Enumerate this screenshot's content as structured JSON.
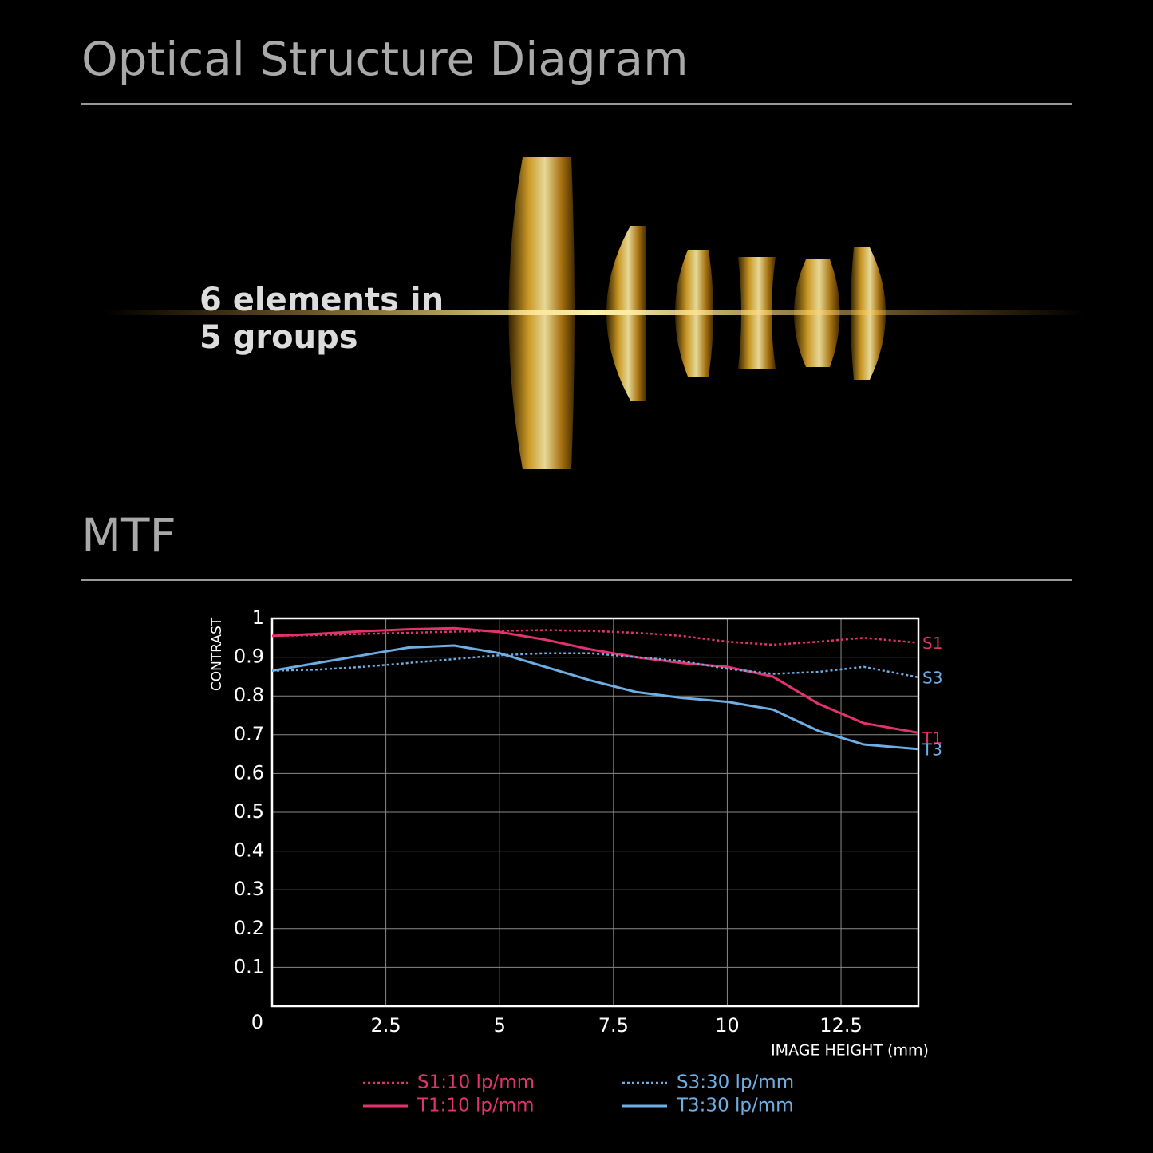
{
  "header": {
    "title": "Optical Structure Diagram"
  },
  "lens": {
    "caption": [
      "6 elements in",
      "5 groups"
    ]
  },
  "mtf": {
    "title": "MTF"
  },
  "chart_data": {
    "type": "line",
    "ylabel": "CONTRAST",
    "xlabel": "IMAGE HEIGHT  (mm)",
    "x": [
      0,
      1,
      2,
      3,
      4,
      5,
      6,
      7,
      8,
      9,
      10,
      11,
      12,
      13,
      14.2
    ],
    "xlim": [
      0,
      14.2
    ],
    "ylim": [
      0,
      1
    ],
    "xticks": [
      2.5,
      5,
      7.5,
      10,
      12.5
    ],
    "yticks": [
      0,
      0.1,
      0.2,
      0.3,
      0.4,
      0.5,
      0.6,
      0.7,
      0.8,
      0.9,
      1
    ],
    "grid": true,
    "series": [
      {
        "name": "S1:10 lp/mm",
        "end_label": "S1",
        "color": "#e3336f",
        "linestyle": "dotted",
        "values": [
          0.955,
          0.957,
          0.96,
          0.963,
          0.966,
          0.968,
          0.97,
          0.968,
          0.963,
          0.955,
          0.94,
          0.932,
          0.94,
          0.95,
          0.937
        ]
      },
      {
        "name": "T1:10 lp/mm",
        "end_label": "T1",
        "color": "#e3336f",
        "linestyle": "solid",
        "values": [
          0.955,
          0.96,
          0.967,
          0.972,
          0.975,
          0.965,
          0.945,
          0.92,
          0.9,
          0.885,
          0.875,
          0.85,
          0.78,
          0.73,
          0.705
        ]
      },
      {
        "name": "S3:30 lp/mm",
        "end_label": "S3",
        "color": "#6eaee3",
        "linestyle": "dotted",
        "values": [
          0.865,
          0.868,
          0.875,
          0.885,
          0.895,
          0.905,
          0.91,
          0.91,
          0.9,
          0.89,
          0.87,
          0.857,
          0.862,
          0.875,
          0.848
        ]
      },
      {
        "name": "T3:30 lp/mm",
        "end_label": "T3",
        "color": "#6eaee3",
        "linestyle": "solid",
        "values": [
          0.865,
          0.885,
          0.905,
          0.925,
          0.93,
          0.91,
          0.875,
          0.84,
          0.81,
          0.795,
          0.785,
          0.765,
          0.71,
          0.675,
          0.663
        ]
      }
    ]
  }
}
